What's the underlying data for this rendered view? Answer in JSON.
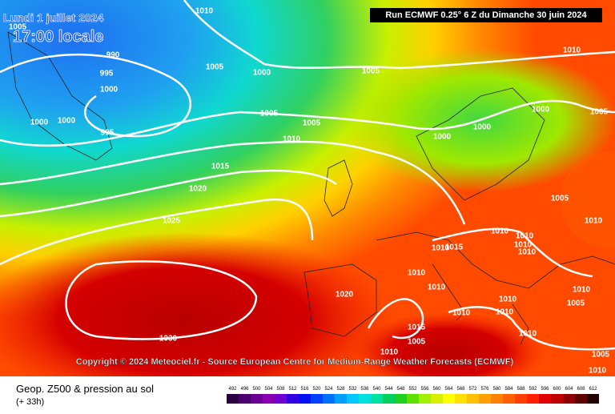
{
  "header": {
    "date": "Lundi 1 juillet 2024",
    "time": "17:00 locale",
    "run": "Run ECMWF 0.25° 6 Z du Dimanche 30 juin 2024"
  },
  "copyright": "Copyright © 2024 Meteociel.fr - Source European Centre for Medium-Range Weather Forecasts (ECMWF)",
  "footer": {
    "title": "Geop. Z500 & pression au sol",
    "subtitle": "(+ 33h)"
  },
  "isobars": [
    "1010",
    "1005",
    "990",
    "995",
    "1000",
    "1005",
    "1000",
    "1005",
    "1010",
    "1000",
    "1000",
    "995",
    "1005",
    "1005",
    "1010",
    "1000",
    "1005",
    "1000",
    "1000",
    "1015",
    "1020",
    "1005",
    "1010",
    "1025",
    "1010",
    "1010",
    "1010",
    "1010",
    "1010",
    "1015",
    "1010",
    "1010",
    "1020",
    "1010",
    "1010",
    "1005",
    "1010",
    "1010",
    "1015",
    "1030",
    "1005",
    "1010",
    "1010",
    "1005",
    "1010"
  ],
  "scale": {
    "labels": [
      492,
      496,
      500,
      504,
      508,
      512,
      516,
      520,
      524,
      528,
      532,
      536,
      540,
      544,
      548,
      552,
      556,
      560,
      564,
      568,
      572,
      576,
      580,
      584,
      588,
      592,
      596,
      600,
      604,
      608,
      612
    ],
    "colors": [
      "#2a0040",
      "#4b0070",
      "#6a0090",
      "#8a00b0",
      "#7000d0",
      "#3000e0",
      "#0010f0",
      "#0040ff",
      "#0070ff",
      "#00a0ff",
      "#00c8ff",
      "#00e0e0",
      "#00e0a0",
      "#00d060",
      "#20d020",
      "#60e000",
      "#a0f000",
      "#d8f000",
      "#ffff00",
      "#ffe000",
      "#ffc000",
      "#ffa000",
      "#ff8000",
      "#ff6000",
      "#ff4000",
      "#ff2000",
      "#e00000",
      "#c00000",
      "#900000",
      "#600000",
      "#200000"
    ]
  }
}
